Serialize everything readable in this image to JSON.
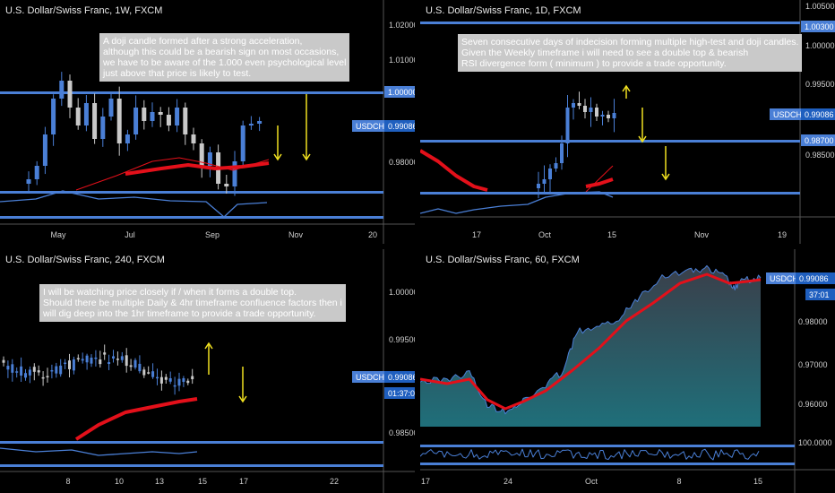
{
  "colors": {
    "bg": "#000000",
    "up": "#4a7fd6",
    "down": "#c9c9c9",
    "ma": "#e3101a",
    "level": "#4a7fd6",
    "arrow": "#f0e020",
    "osc": "#4a7fd6",
    "area_top": "#1f6f7a",
    "area_bottom": "#3a3f4a"
  },
  "panels": [
    {
      "id": "weekly",
      "title": "U.S. Dollar/Swiss Franc, 1W, FXCM",
      "note": [
        "A doji candle formed after a strong acceleration,",
        "although this could be a bearish sign on most occasions,",
        "we have to be aware of the 1.000 even psychological level",
        "just above that price is likely to test."
      ],
      "y_ticks": [
        "1.02000",
        "1.01000",
        "0.98000"
      ],
      "tags": [
        {
          "text": "1.00000",
          "type": "level"
        },
        {
          "text": "USDCHF",
          "type": "sym"
        },
        {
          "text": "0.99086",
          "type": "price"
        }
      ],
      "x_ticks": [
        "May",
        "Jul",
        "Sep",
        "Nov",
        "20"
      ]
    },
    {
      "id": "daily",
      "title": "U.S. Dollar/Swiss Franc, 1D, FXCM",
      "note": [
        "Seven consecutive days of indecision forming multiple high-test and doji candles.",
        "Given the Weekly timeframe i will need to see a double top & bearish",
        "RSI divergence form ( minimum ) to provide a trade opportunity."
      ],
      "y_ticks": [
        "1.00500",
        "1.00000",
        "0.99500",
        "0.98500"
      ],
      "tags": [
        {
          "text": "1.00300",
          "type": "level"
        },
        {
          "text": "USDCHF",
          "type": "sym"
        },
        {
          "text": "0.99086",
          "type": "price"
        },
        {
          "text": "0.98700",
          "type": "level"
        }
      ],
      "x_ticks": [
        "17",
        "Oct",
        "15",
        "Nov",
        "19"
      ]
    },
    {
      "id": "h4",
      "title": "U.S. Dollar/Swiss Franc, 240, FXCM",
      "note": [
        "I will be watching price closely if / when it forms a double top.",
        "Should there be multiple Daily & 4hr timeframe confluence factors then i",
        "will dig deep into the 1hr timeframe to provide a trade opportunity."
      ],
      "y_ticks": [
        "1.00000",
        "0.99500",
        "0.98500"
      ],
      "tags": [
        {
          "text": "USDCHF",
          "type": "sym"
        },
        {
          "text": "0.99086",
          "type": "price"
        },
        {
          "text": "01:37:01",
          "type": "price"
        }
      ],
      "x_ticks": [
        "8",
        "10",
        "13",
        "15",
        "17",
        "22"
      ]
    },
    {
      "id": "h1",
      "title": "U.S. Dollar/Swiss Franc, 60, FXCM",
      "note": [],
      "y_ticks": [
        "0.98000",
        "0.97000",
        "0.96000",
        "100.0000"
      ],
      "tags": [
        {
          "text": "USDCHF",
          "type": "sym"
        },
        {
          "text": "0.99086",
          "type": "price"
        },
        {
          "text": "37:01",
          "type": "price"
        }
      ],
      "x_ticks": [
        "17",
        "24",
        "Oct",
        "8",
        "15"
      ]
    }
  ]
}
